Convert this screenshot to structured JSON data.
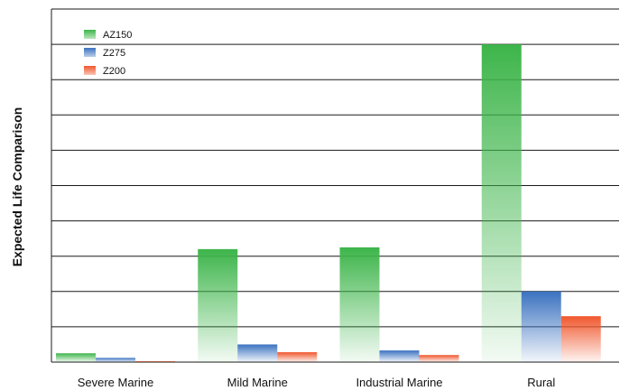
{
  "chart_data": {
    "type": "bar",
    "title": "",
    "xlabel": "",
    "ylabel": "Expected Life Comparison",
    "categories": [
      "Severe Marine",
      "Mild Marine",
      "Industrial Marine",
      "Rural"
    ],
    "series": [
      {
        "name": "AZ150",
        "values": [
          0.25,
          3.2,
          3.25,
          9.0
        ],
        "color": "#3db54a"
      },
      {
        "name": "Z275",
        "values": [
          0.12,
          0.5,
          0.33,
          2.0
        ],
        "color": "#3b72c0"
      },
      {
        "name": "Z200",
        "values": [
          0.02,
          0.28,
          0.2,
          1.3
        ],
        "color": "#f0572d"
      }
    ],
    "ylim": [
      0,
      10
    ],
    "y_ticks_labeled": false,
    "grid": true,
    "legend_position": "top-left"
  }
}
